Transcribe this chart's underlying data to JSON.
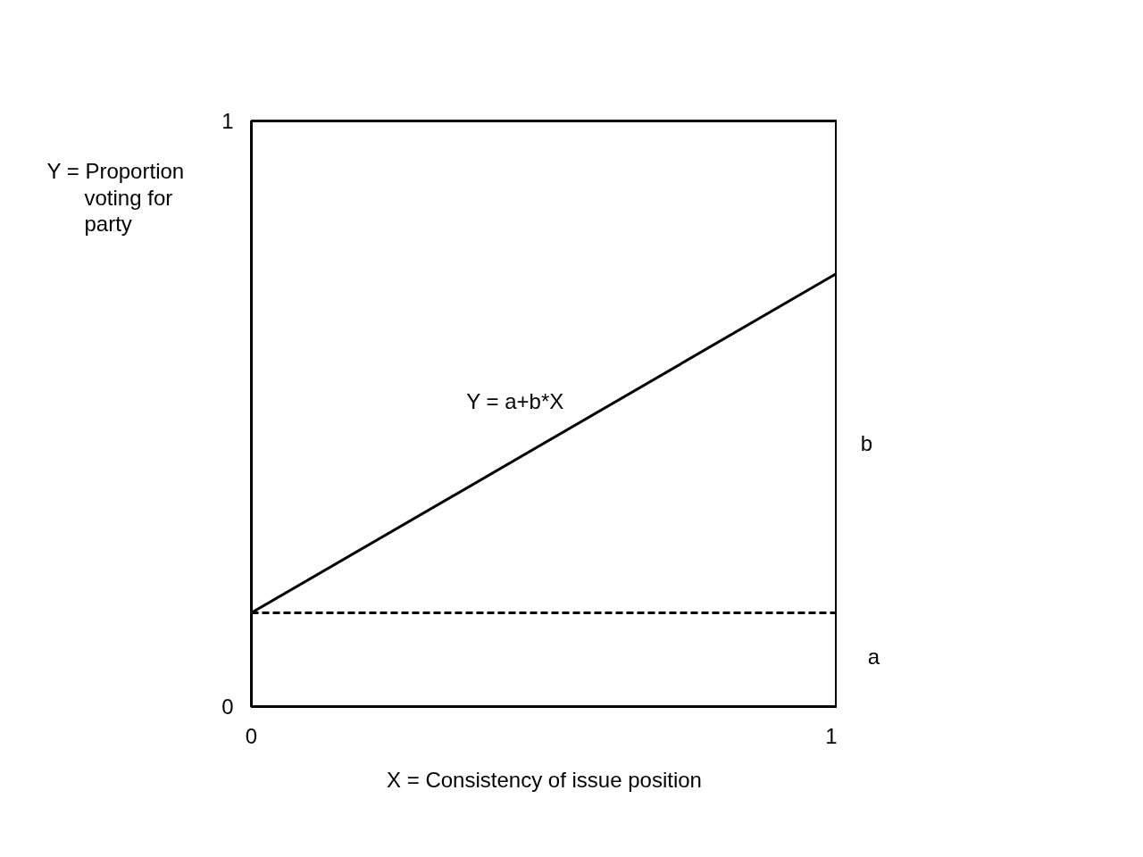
{
  "chart_data": {
    "type": "line",
    "xlabel": "X = Consistency of issue position",
    "ylabel": "Y = Proportion voting for party",
    "x": [
      0,
      1
    ],
    "series": [
      {
        "name": "Y = a+b*X",
        "color": "#000000",
        "values": [
          0.16,
          0.74
        ]
      }
    ],
    "xlim": [
      0,
      1
    ],
    "ylim": [
      0,
      1
    ],
    "xticks": [
      0,
      1
    ],
    "yticks": [
      0,
      1
    ],
    "ref_lines": [
      {
        "axis": "y",
        "value": 0.16,
        "label": "a",
        "color": "#000000",
        "line_style": "dashed"
      }
    ],
    "annotations": [
      "b"
    ]
  }
}
